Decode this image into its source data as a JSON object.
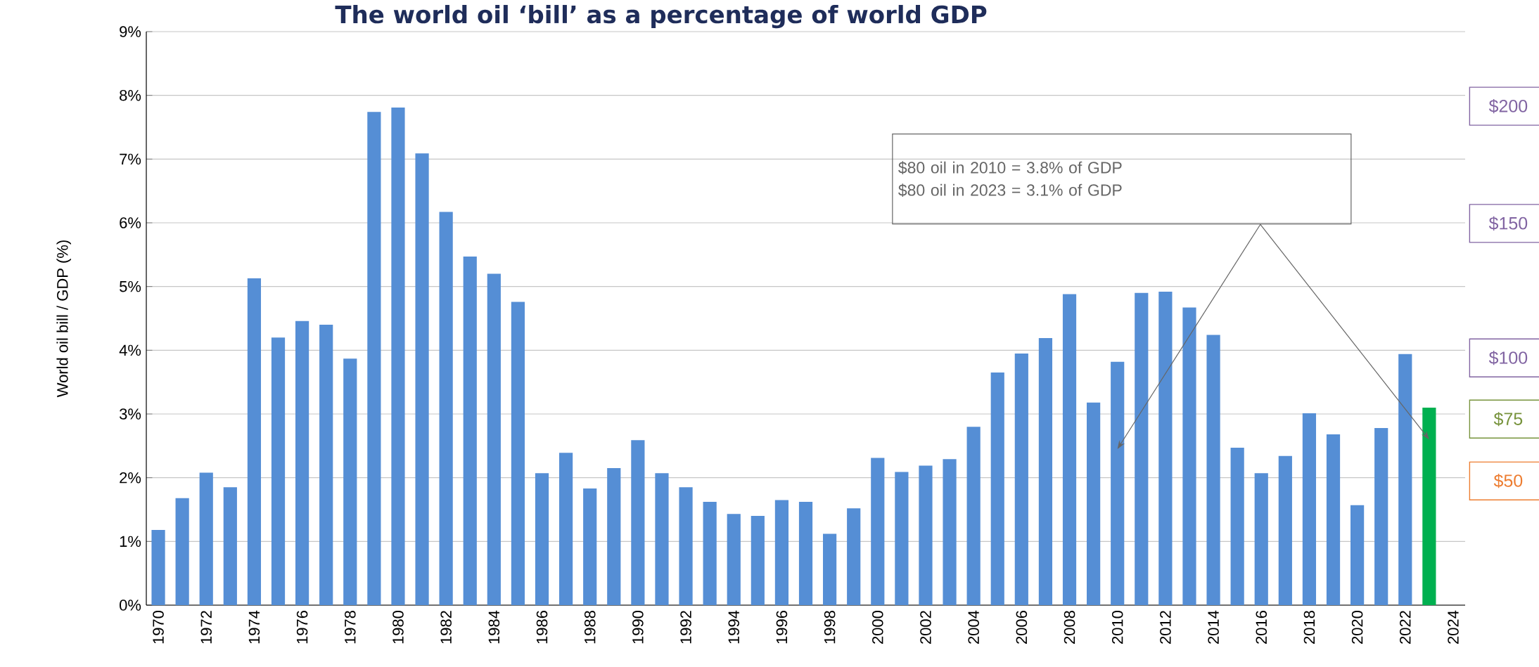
{
  "chart_data": {
    "type": "bar",
    "title": "The world oil ‘bill’ as a percentage of world GDP",
    "ylabel": "World oil bill / GDP (%)",
    "categories": [
      "1970",
      null,
      "1972",
      null,
      "1974",
      null,
      "1976",
      null,
      "1978",
      null,
      "1980",
      null,
      "1982",
      null,
      "1984",
      null,
      "1986",
      null,
      "1988",
      null,
      "1990",
      null,
      "1992",
      null,
      "1994",
      null,
      "1996",
      null,
      "1998",
      null,
      "2000",
      null,
      "2002",
      null,
      "2004",
      null,
      "2006",
      null,
      "2008",
      null,
      "2010",
      null,
      "2012",
      null,
      "2014",
      null,
      "2016",
      null,
      "2018",
      null,
      "2020",
      null,
      "2022",
      null,
      "2024"
    ],
    "values": [
      1.18,
      1.68,
      2.08,
      1.85,
      5.13,
      4.2,
      4.46,
      4.4,
      3.87,
      7.74,
      7.81,
      7.09,
      6.17,
      5.47,
      5.2,
      4.76,
      2.07,
      2.39,
      1.83,
      2.15,
      2.59,
      2.07,
      1.85,
      1.62,
      1.43,
      1.4,
      1.65,
      1.62,
      1.12,
      1.52,
      2.31,
      2.09,
      2.19,
      2.29,
      2.8,
      3.65,
      3.95,
      4.19,
      4.88,
      3.18,
      3.82,
      4.9,
      4.92,
      4.67,
      4.24,
      2.47,
      2.07,
      2.34,
      3.01,
      2.68,
      1.57,
      2.78,
      3.94,
      3.1,
      null
    ],
    "colors": [
      "#558ed5",
      "#558ed5",
      "#558ed5",
      "#558ed5",
      "#558ed5",
      "#558ed5",
      "#558ed5",
      "#558ed5",
      "#558ed5",
      "#558ed5",
      "#558ed5",
      "#558ed5",
      "#558ed5",
      "#558ed5",
      "#558ed5",
      "#558ed5",
      "#558ed5",
      "#558ed5",
      "#558ed5",
      "#558ed5",
      "#558ed5",
      "#558ed5",
      "#558ed5",
      "#558ed5",
      "#558ed5",
      "#558ed5",
      "#558ed5",
      "#558ed5",
      "#558ed5",
      "#558ed5",
      "#558ed5",
      "#558ed5",
      "#558ed5",
      "#558ed5",
      "#558ed5",
      "#558ed5",
      "#558ed5",
      "#558ed5",
      "#558ed5",
      "#558ed5",
      "#558ed5",
      "#558ed5",
      "#558ed5",
      "#558ed5",
      "#558ed5",
      "#558ed5",
      "#558ed5",
      "#558ed5",
      "#558ed5",
      "#558ed5",
      "#558ed5",
      "#558ed5",
      "#558ed5",
      "#00b050",
      "#558ed5"
    ],
    "ylim": [
      0,
      9
    ],
    "yticks": [
      {
        "value": 0,
        "label": "0%"
      },
      {
        "value": 1,
        "label": "1%"
      },
      {
        "value": 2,
        "label": "2%"
      },
      {
        "value": 3,
        "label": "3%"
      },
      {
        "value": 4,
        "label": "4%"
      },
      {
        "value": 5,
        "label": "5%"
      },
      {
        "value": 6,
        "label": "6%"
      },
      {
        "value": 7,
        "label": "7%"
      },
      {
        "value": 8,
        "label": "8%"
      },
      {
        "value": 9,
        "label": "9%"
      }
    ],
    "grid": "y",
    "annotations": [
      "$80 oil in 2010 = 3.8% of GDP",
      "$80 oil in 2023 = 3.1% of GDP",
      "$200",
      "$150",
      "$100",
      "$75",
      "$50"
    ]
  }
}
